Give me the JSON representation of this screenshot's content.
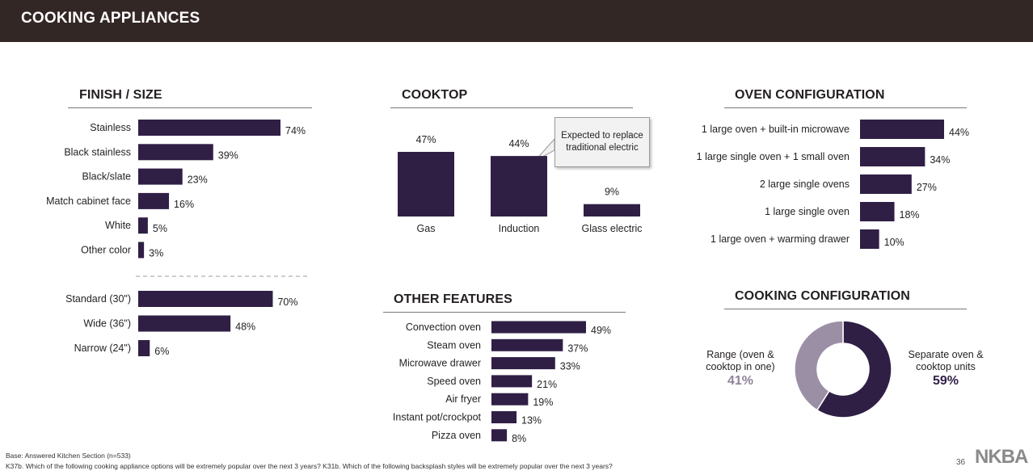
{
  "header": {
    "title": "COOKING APPLIANCES"
  },
  "colors": {
    "bar": "#2f1f45",
    "donut_major": "#2f1f45",
    "donut_minor": "#9b8fa6",
    "header_bg": "#332726"
  },
  "sections": {
    "finish_size": "FINISH / SIZE",
    "cooktop": "COOKTOP",
    "oven_configuration": "OVEN CONFIGURATION",
    "other_features": "OTHER FEATURES",
    "cooking_configuration": "COOKING CONFIGURATION"
  },
  "callout": {
    "text": "Expected to replace traditional electric"
  },
  "chart_data": [
    {
      "id": "finish",
      "type": "bar",
      "orientation": "horizontal",
      "title": "FINISH / SIZE",
      "categories": [
        "Stainless",
        "Black stainless",
        "Black/slate",
        "Match cabinet face",
        "White",
        "Other color"
      ],
      "values": [
        74,
        39,
        23,
        16,
        5,
        3
      ],
      "labels": [
        "74%",
        "39%",
        "23%",
        "16%",
        "5%",
        "3%"
      ],
      "unit": "%"
    },
    {
      "id": "size",
      "type": "bar",
      "orientation": "horizontal",
      "categories": [
        "Standard (30\")",
        "Wide (36\")",
        "Narrow (24\")"
      ],
      "values": [
        70,
        48,
        6
      ],
      "labels": [
        "70%",
        "48%",
        "6%"
      ],
      "unit": "%"
    },
    {
      "id": "cooktop",
      "type": "bar",
      "orientation": "vertical",
      "title": "COOKTOP",
      "categories": [
        "Gas",
        "Induction",
        "Glass electric"
      ],
      "values": [
        47,
        44,
        9
      ],
      "labels": [
        "47%",
        "44%",
        "9%"
      ],
      "unit": "%"
    },
    {
      "id": "oven",
      "type": "bar",
      "orientation": "horizontal",
      "title": "OVEN CONFIGURATION",
      "categories": [
        "1 large oven + built-in microwave",
        "1 large single oven + 1 small oven",
        "2 large single ovens",
        "1 large single oven",
        "1 large oven + warming drawer"
      ],
      "values": [
        44,
        34,
        27,
        18,
        10
      ],
      "labels": [
        "44%",
        "34%",
        "27%",
        "18%",
        "10%"
      ],
      "unit": "%"
    },
    {
      "id": "features",
      "type": "bar",
      "orientation": "horizontal",
      "title": "OTHER FEATURES",
      "categories": [
        "Convection oven",
        "Steam oven",
        "Microwave drawer",
        "Speed oven",
        "Air fryer",
        "Instant pot/crockpot",
        "Pizza oven"
      ],
      "values": [
        49,
        37,
        33,
        21,
        19,
        13,
        8
      ],
      "labels": [
        "49%",
        "37%",
        "33%",
        "21%",
        "19%",
        "13%",
        "8%"
      ],
      "unit": "%"
    },
    {
      "id": "cooking_config",
      "type": "pie",
      "title": "COOKING CONFIGURATION",
      "slices": [
        {
          "label": "Range (oven & cooktop in one)",
          "value": 41,
          "display": "41%"
        },
        {
          "label": "Separate oven & cooktop units",
          "value": 59,
          "display": "59%"
        }
      ]
    }
  ],
  "footer": {
    "base": "Base:  Answered Kitchen Section (n=533)",
    "question": "K37b. Which of the following cooking appliance options will be extremely popular over the next 3 years? K31b.  Which of the following backsplash styles will be extremely popular over the next 3 years?",
    "page_number": "36",
    "logo_text": "NKBA"
  }
}
